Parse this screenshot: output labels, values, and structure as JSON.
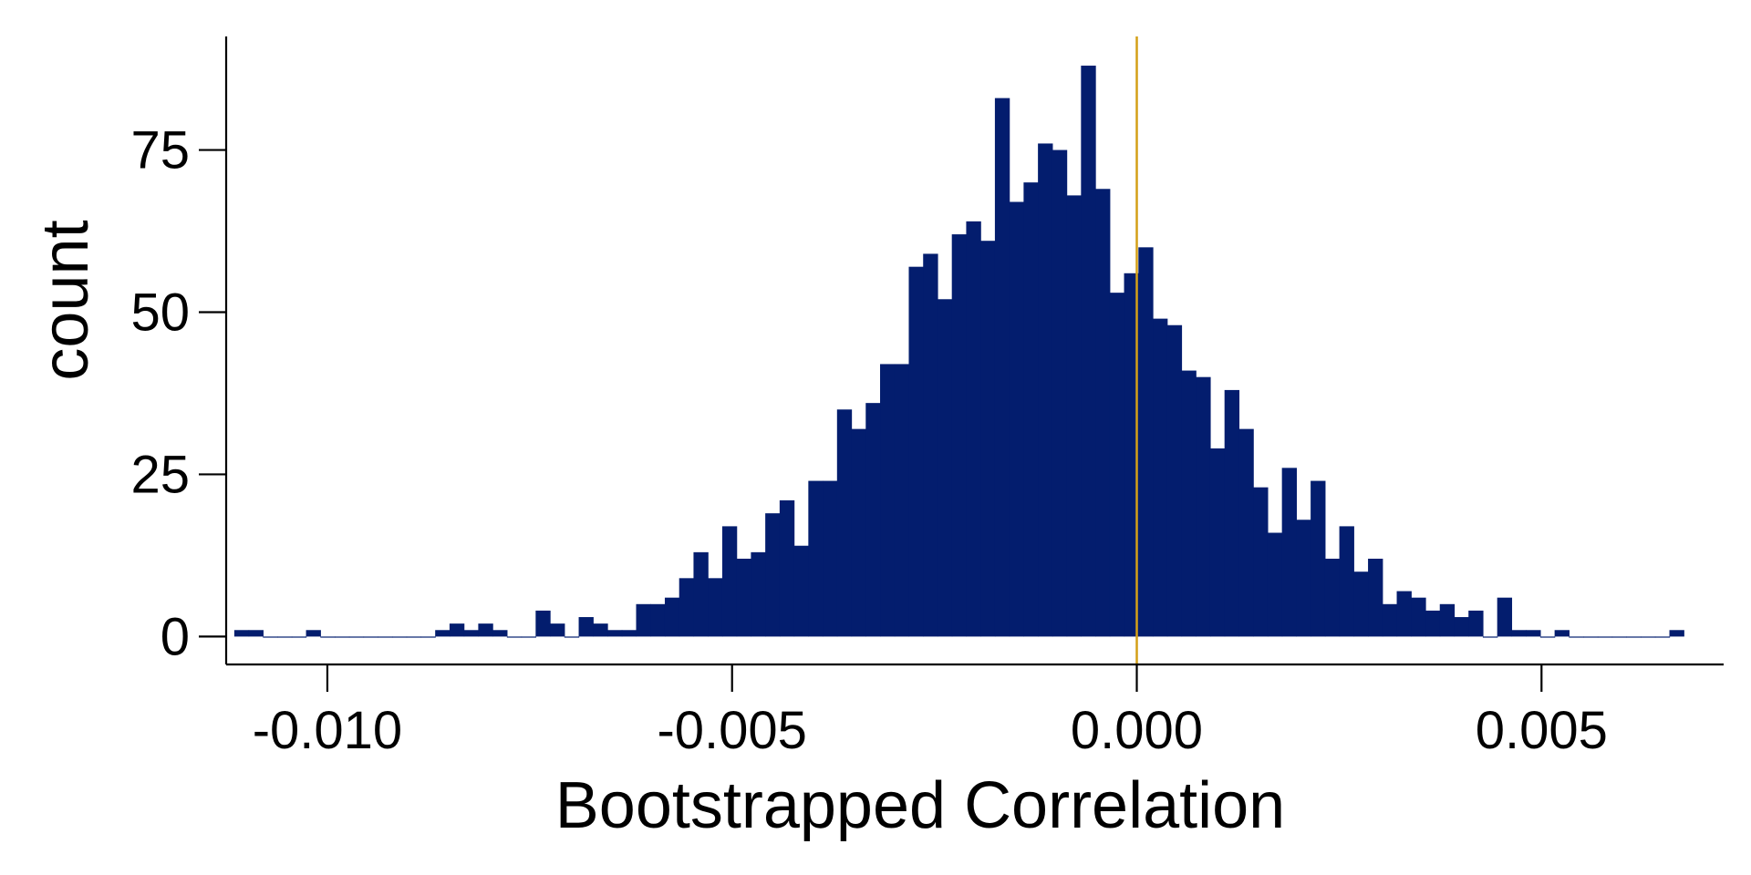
{
  "chart_data": {
    "type": "bar",
    "subtype": "histogram",
    "title": "",
    "xlabel": "Bootstrapped Correlation",
    "ylabel": "count",
    "xlim": [
      -0.01125,
      0.00725
    ],
    "ylim": [
      -4.3,
      92.5
    ],
    "grid": false,
    "legend": "none",
    "colors": {
      "bars": "#031D6E",
      "reference_line": "#D4A017",
      "axis": "#000000",
      "background": "#FFFFFF"
    },
    "reference_line": {
      "x": 0.0
    },
    "x_ticks": [
      {
        "value": -0.01,
        "label": "-0.010"
      },
      {
        "value": -0.005,
        "label": "-0.005"
      },
      {
        "value": 0.0,
        "label": "0.000"
      },
      {
        "value": 0.005,
        "label": "0.005"
      }
    ],
    "y_ticks": [
      {
        "value": 0,
        "label": "0"
      },
      {
        "value": 25,
        "label": "25"
      },
      {
        "value": 50,
        "label": "50"
      },
      {
        "value": 75,
        "label": "75"
      }
    ],
    "bin_start": -0.01115,
    "bin_width": 0.0001773,
    "counts": [
      1,
      1,
      0,
      0,
      0,
      1,
      0,
      0,
      0,
      0,
      0,
      0,
      0,
      0,
      1,
      2,
      1,
      2,
      1,
      0,
      0,
      4,
      2,
      0,
      3,
      2,
      1,
      1,
      5,
      5,
      6,
      9,
      13,
      9,
      17,
      12,
      13,
      19,
      21,
      14,
      24,
      24,
      35,
      32,
      36,
      42,
      42,
      57,
      59,
      52,
      62,
      64,
      61,
      83,
      67,
      70,
      76,
      75,
      68,
      88,
      69,
      53,
      56,
      60,
      49,
      48,
      41,
      40,
      29,
      38,
      32,
      23,
      16,
      26,
      18,
      24,
      12,
      17,
      10,
      12,
      5,
      7,
      6,
      4,
      5,
      3,
      4,
      0,
      6,
      1,
      1,
      0,
      1,
      0,
      0,
      0,
      0,
      0,
      0,
      0,
      1
    ]
  }
}
